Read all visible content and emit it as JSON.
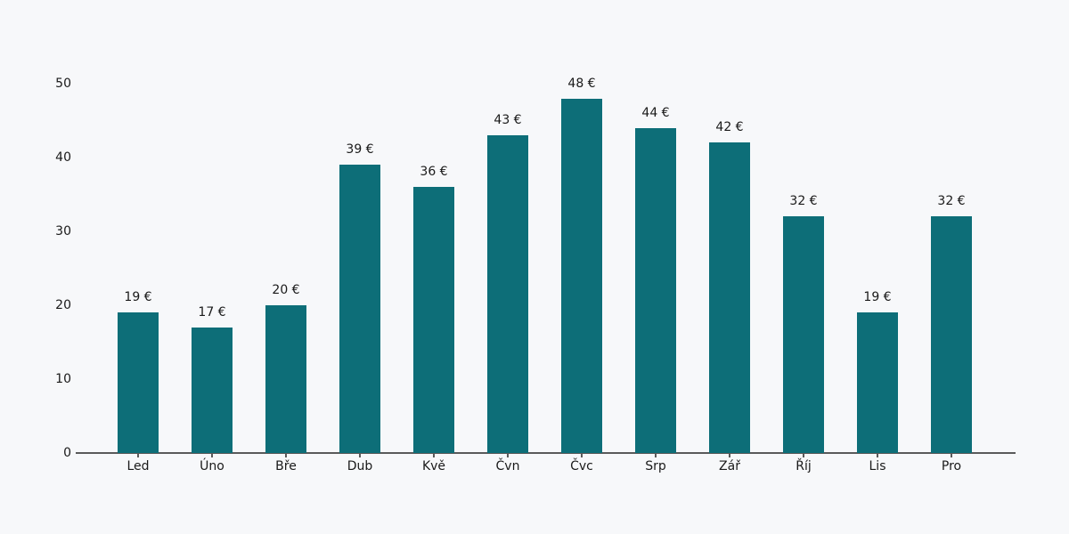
{
  "chart_data": {
    "type": "bar",
    "title": "",
    "xlabel": "",
    "ylabel": "",
    "categories": [
      "Led",
      "Úno",
      "Bře",
      "Dub",
      "Kvě",
      "Čvn",
      "Čvc",
      "Srp",
      "Zář",
      "Říj",
      "Lis",
      "Pro"
    ],
    "values": [
      19,
      17,
      20,
      39,
      36,
      43,
      48,
      44,
      42,
      32,
      19,
      32
    ],
    "value_labels": [
      "19 €",
      "17 €",
      "20 €",
      "39 €",
      "36 €",
      "43 €",
      "48 €",
      "44 €",
      "42 €",
      "32 €",
      "19 €",
      "32 €"
    ],
    "unit": "€",
    "ylim": [
      0,
      50
    ],
    "yticks": [
      0,
      10,
      20,
      30,
      40,
      50
    ],
    "grid": false,
    "legend": false,
    "bar_color": "#0d6e78",
    "background_color": "#f7f8fa",
    "axis_color": "#5a5a5a",
    "text_color": "#1a1a1a"
  }
}
